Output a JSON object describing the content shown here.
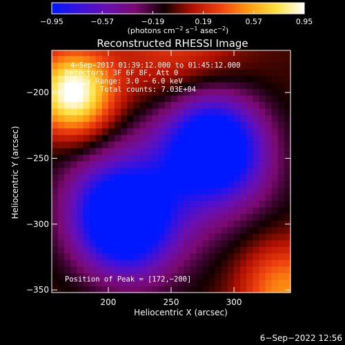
{
  "chart_data": {
    "type": "heatmap",
    "title": "Reconstructed RHESSI Image",
    "xlabel": "Heliocentric X (arcsec)",
    "ylabel": "Heliocentric Y (arcsec)",
    "xlim": [
      155,
      345
    ],
    "ylim": [
      -352,
      -168
    ],
    "x_ticks": [
      200,
      250,
      300
    ],
    "x_tick_labels": [
      "200",
      "250",
      "300"
    ],
    "y_ticks": [
      -200,
      -250,
      -300,
      -350
    ],
    "y_tick_labels": [
      "−200",
      "−250",
      "−300",
      "−350"
    ],
    "colorbar": {
      "range": [
        -0.95,
        0.95
      ],
      "ticks": [
        -0.95,
        -0.57,
        -0.19,
        0.19,
        0.57,
        0.95
      ],
      "tick_labels": [
        "−0.95",
        "−0.57",
        "−0.19",
        "0.19",
        "0.57",
        "0.95"
      ],
      "unit_label_parts": [
        "(photons cm",
        "−2",
        " s",
        "−1",
        " asec",
        "−2",
        ")"
      ],
      "colors": [
        "#0018ff",
        "#3c12dc",
        "#6a0fb0",
        "#7a0a70",
        "#100000",
        "#b01000",
        "#f04010",
        "#ff9a10",
        "#ffe040",
        "#ffffff"
      ]
    },
    "annotations": [
      "4−Sep−2017 01:39:12.000 to 01:45:12.000",
      "Detectors: 3F 6F 8F, Att 0",
      "Energy Range: 3.0 − 6.0 keV",
      "Total counts: 7.03E+04",
      "Position of Peak = [172,−200]"
    ],
    "peak": {
      "x": 172,
      "y": -200,
      "value": 0.95
    },
    "blue_minima": [
      {
        "x": 212,
        "y": -295,
        "value": -0.95
      },
      {
        "x": 283,
        "y": -242,
        "value": -0.85
      }
    ],
    "timestamp": "6−Sep−2022 12:56"
  }
}
